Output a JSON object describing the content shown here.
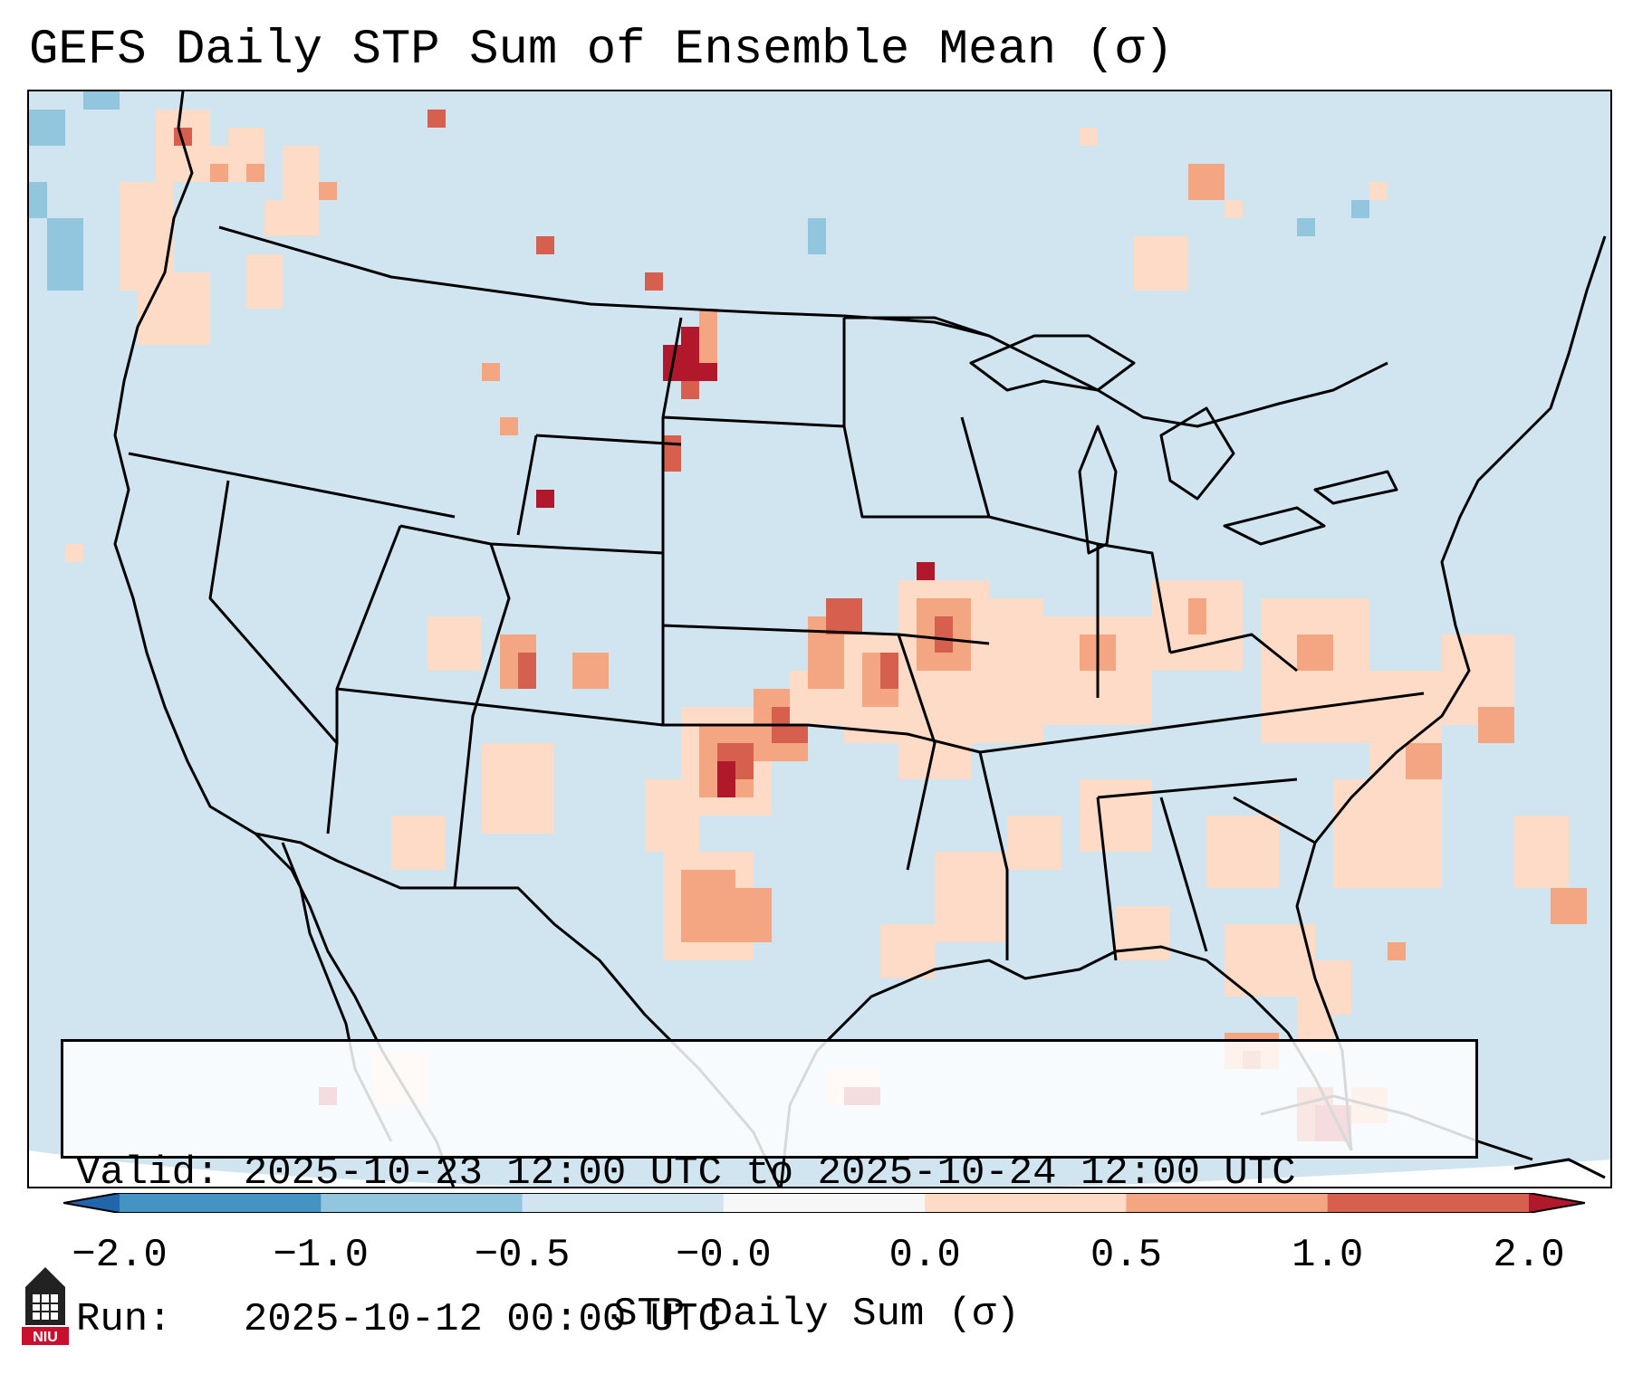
{
  "title": "GEFS Daily STP Sum of Ensemble Mean (σ)",
  "info": {
    "valid_label": "Valid:",
    "valid_value": "2025-10-23 12:00 UTC to 2025-10-24 12:00 UTC",
    "run_label": "Run:",
    "run_value": "2025-10-12 00:00 UTC"
  },
  "colorbar": {
    "label": "STP Daily Sum (σ)",
    "ticks": [
      "−2.0",
      "−1.0",
      "−0.5",
      "−0.0",
      "0.0",
      "0.5",
      "1.0",
      "2.0"
    ],
    "bins": [
      {
        "range": "< -2.0",
        "color": "#2166ac"
      },
      {
        "range": "-2.0 to -1.0",
        "color": "#4393c3"
      },
      {
        "range": "-1.0 to -0.5",
        "color": "#92c5de"
      },
      {
        "range": "-0.5 to -0.0",
        "color": "#d1e5f0"
      },
      {
        "range": "-0.0 to 0.0",
        "color": "#f7f7f7"
      },
      {
        "range": "0.0 to 0.5",
        "color": "#fddbc7"
      },
      {
        "range": "0.5 to 1.0",
        "color": "#f4a582"
      },
      {
        "range": "1.0 to 2.0",
        "color": "#d6604d"
      },
      {
        "range": "> 2.0",
        "color": "#b2182b"
      }
    ]
  },
  "logo": {
    "text": "NIU",
    "color": "#c8102e"
  },
  "map": {
    "projection": "Lambert Conformal (CONUS)",
    "background_color": "#d1e5f0",
    "features": [
      "coastlines",
      "country borders",
      "US state borders"
    ]
  }
}
